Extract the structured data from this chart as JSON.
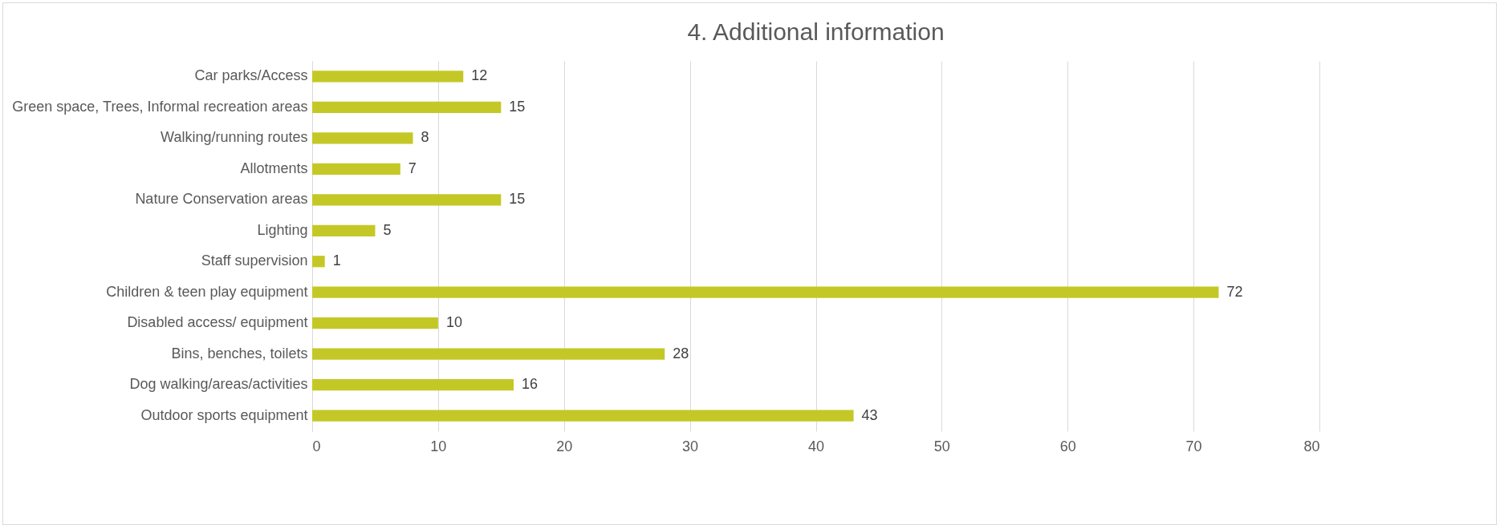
{
  "chart_data": {
    "type": "bar",
    "orientation": "horizontal",
    "title": "4. Additional information",
    "categories": [
      "Car parks/Access",
      "Green space, Trees, Informal recreation areas",
      "Walking/running routes",
      "Allotments",
      "Nature Conservation areas",
      "Lighting",
      "Staff supervision",
      "Children & teen play equipment",
      "Disabled access/ equipment",
      "Bins, benches, toilets",
      "Dog walking/areas/activities",
      "Outdoor sports equipment"
    ],
    "values": [
      12,
      15,
      8,
      7,
      15,
      5,
      1,
      72,
      10,
      28,
      16,
      43
    ],
    "color": "#c4c826",
    "xlim": [
      0,
      80
    ],
    "xticks": [
      0,
      10,
      20,
      30,
      40,
      50,
      60,
      70,
      80
    ],
    "grid": "x",
    "data_labels": true
  }
}
